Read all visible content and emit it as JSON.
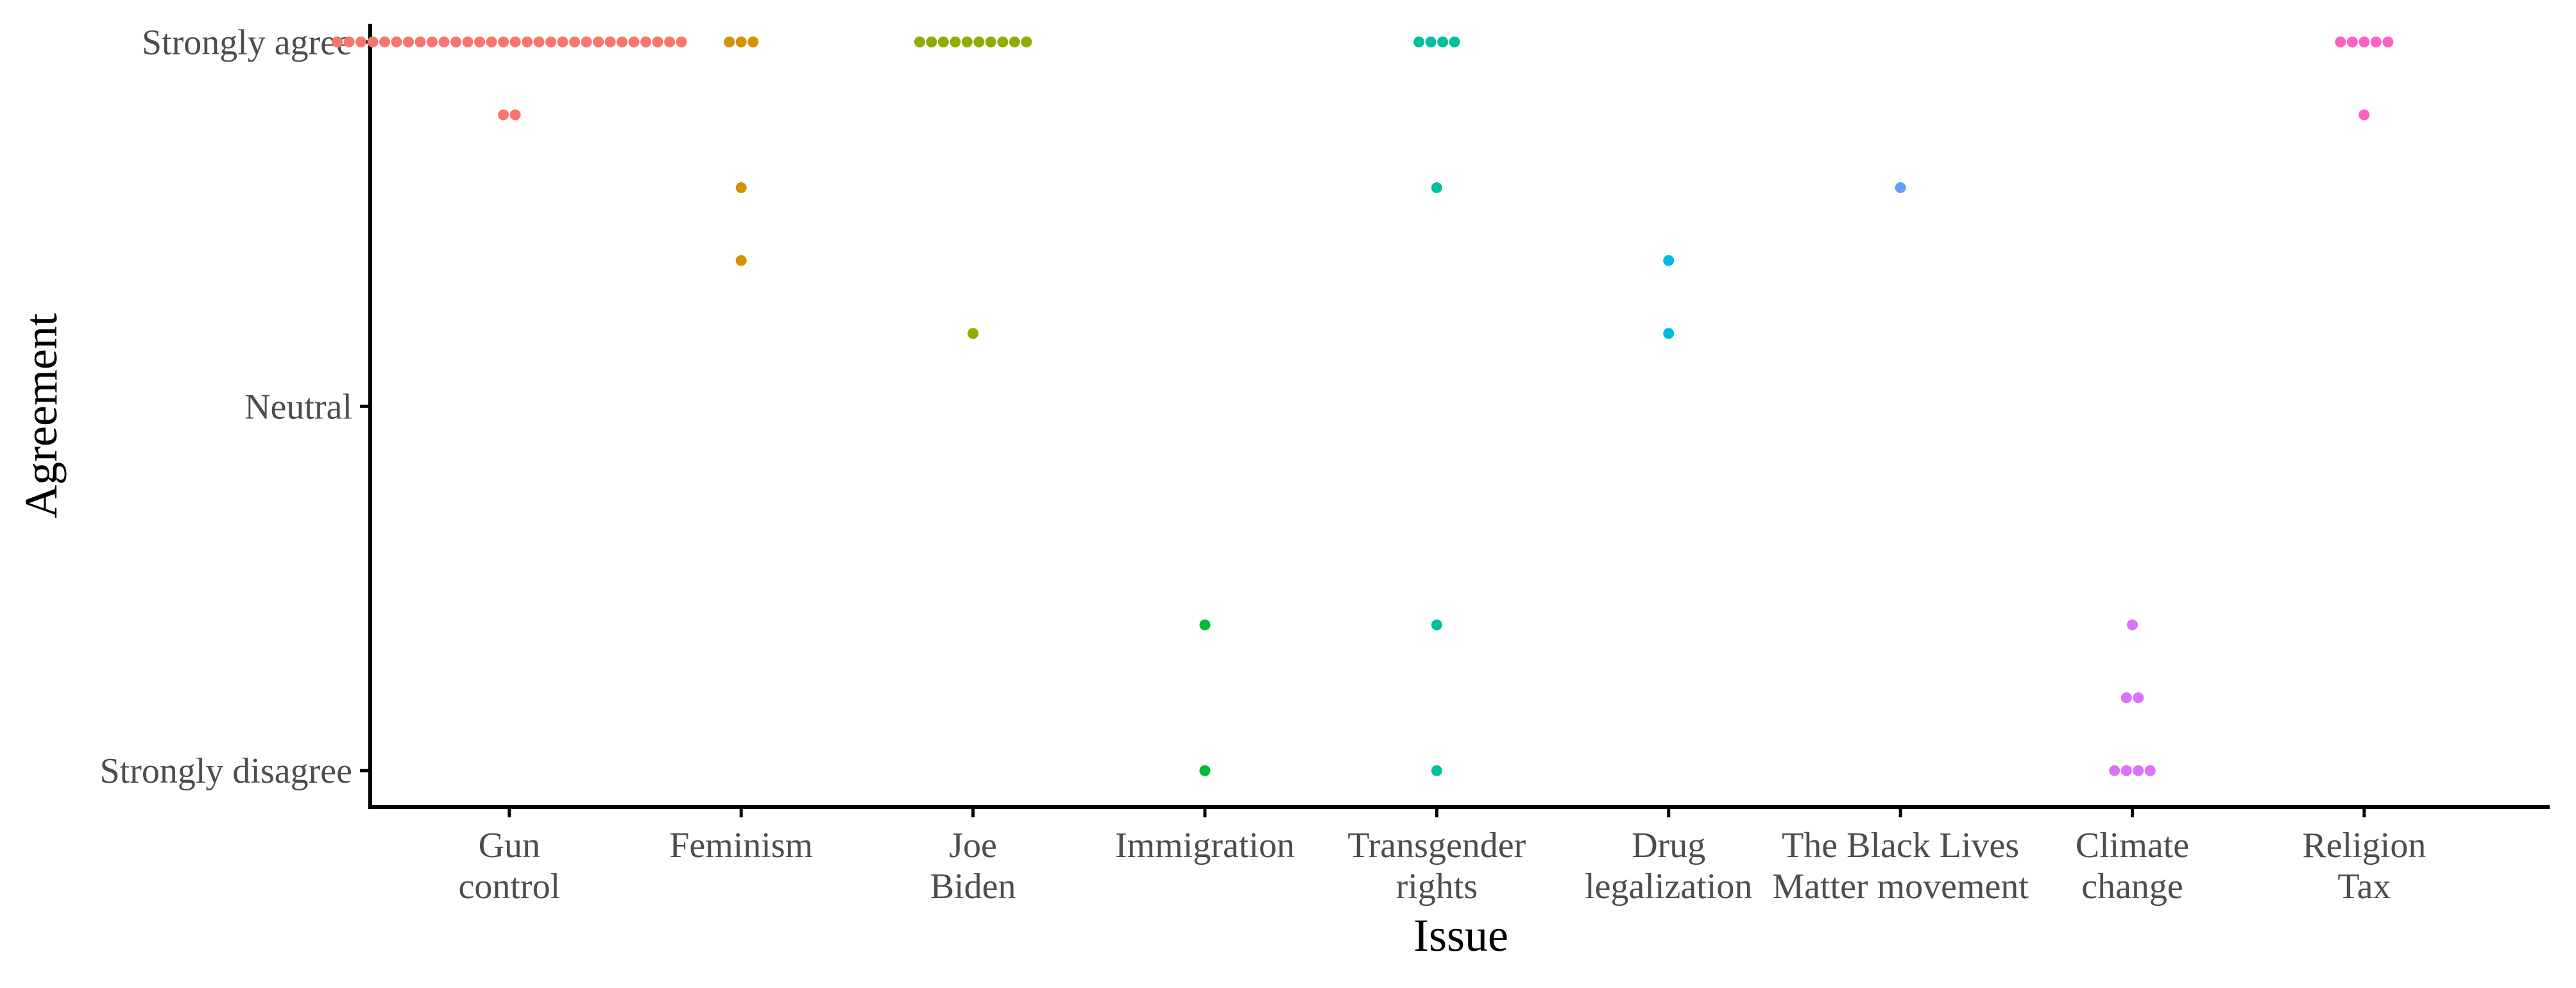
{
  "chart_data": {
    "type": "scatter",
    "xlabel": "Issue",
    "ylabel": "Agreement",
    "ylim": [
      -1.1,
      1.05
    ],
    "grid": false,
    "legend": "none",
    "categories": [
      [
        "Gun",
        "control"
      ],
      [
        "Feminism"
      ],
      [
        "Joe",
        "Biden"
      ],
      [
        "Immigration"
      ],
      [
        "Transgender",
        "rights"
      ],
      [
        "Drug",
        "legalization"
      ],
      [
        "The Black Lives",
        "Matter movement"
      ],
      [
        "Climate",
        "change"
      ],
      [
        "Religion",
        "Tax"
      ]
    ],
    "y_ticks": [
      {
        "value": 1,
        "label": "Strongly agree"
      },
      {
        "value": 0,
        "label": "Neutral"
      },
      {
        "value": -1,
        "label": "Strongly disagree"
      }
    ],
    "colors": [
      "#F8766D",
      "#D39200",
      "#93AA00",
      "#00BA38",
      "#00C19F",
      "#00B9E3",
      "#619CFF",
      "#DB72FB",
      "#FF61C3"
    ],
    "series": [
      {
        "points": [
          {
            "y": 1,
            "count": 30
          },
          {
            "y": 0.8,
            "count": 2
          }
        ]
      },
      {
        "points": [
          {
            "y": 1,
            "count": 3
          },
          {
            "y": 0.6,
            "count": 1
          },
          {
            "y": 0.4,
            "count": 1
          }
        ]
      },
      {
        "points": [
          {
            "y": 1,
            "count": 10
          },
          {
            "y": 0.2,
            "count": 1
          }
        ]
      },
      {
        "points": [
          {
            "y": -0.6,
            "count": 1
          },
          {
            "y": -1,
            "count": 1
          }
        ]
      },
      {
        "points": [
          {
            "y": 1,
            "count": 4
          },
          {
            "y": 0.6,
            "count": 1
          },
          {
            "y": -0.6,
            "count": 1
          },
          {
            "y": -1,
            "count": 1
          }
        ]
      },
      {
        "points": [
          {
            "y": 0.4,
            "count": 1
          },
          {
            "y": 0.2,
            "count": 1
          }
        ]
      },
      {
        "points": [
          {
            "y": 0.6,
            "count": 1
          }
        ]
      },
      {
        "points": [
          {
            "y": -0.6,
            "count": 1
          },
          {
            "y": -0.8,
            "count": 2
          },
          {
            "y": -1,
            "count": 4
          }
        ]
      },
      {
        "points": [
          {
            "y": 1,
            "count": 5
          },
          {
            "y": 0.8,
            "count": 1
          }
        ]
      }
    ]
  }
}
